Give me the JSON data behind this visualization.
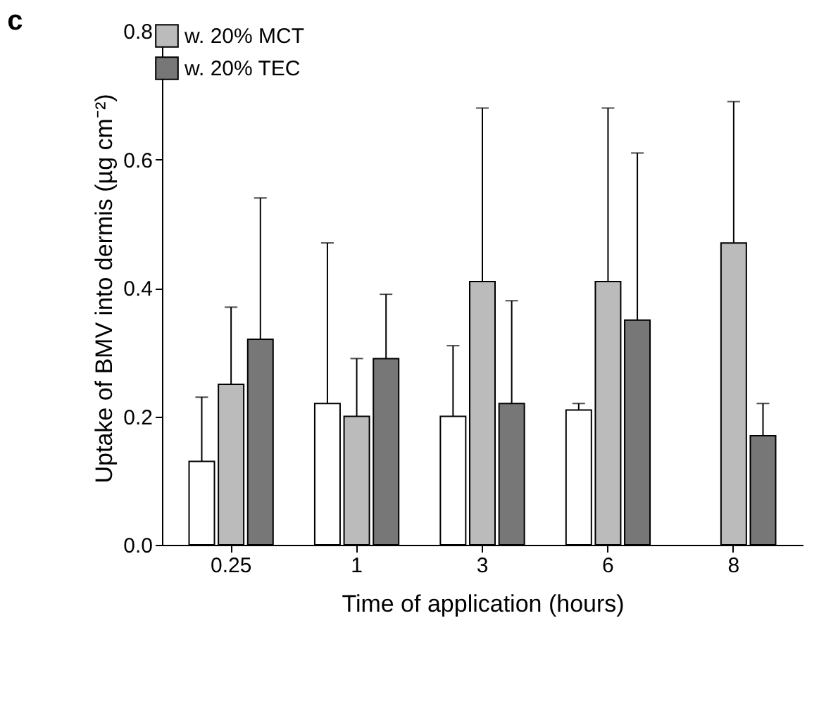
{
  "chart_data": {
    "type": "bar",
    "ylabel": "Uptake of BMV into dermis (µg cm⁻²)",
    "xlabel": "Time of application (hours)",
    "annotations": [
      "c"
    ],
    "categories": [
      "0.25",
      "1",
      "3",
      "6",
      "8"
    ],
    "series": [
      {
        "color": "#ffffff",
        "values": [
          0.13,
          0.22,
          0.2,
          0.21,
          null
        ],
        "errors": [
          [
            0.13,
            0.23
          ],
          [
            0.22,
            0.47
          ],
          [
            0.2,
            0.31
          ],
          [
            0.21,
            0.22
          ],
          null
        ]
      },
      {
        "name": "w. 20% MCT",
        "color": "#bbbbbb",
        "values": [
          0.25,
          0.2,
          0.41,
          0.41,
          0.47
        ],
        "errors": [
          [
            0.25,
            0.37
          ],
          [
            0.2,
            0.29
          ],
          [
            0.41,
            0.68
          ],
          [
            0.41,
            0.68
          ],
          [
            0.47,
            0.69
          ]
        ]
      },
      {
        "name": "w. 20% TEC",
        "color": "#777777",
        "values": [
          0.32,
          0.29,
          0.22,
          0.35,
          0.17
        ],
        "errors": [
          [
            0.32,
            0.54
          ],
          [
            0.29,
            0.39
          ],
          [
            0.22,
            0.38
          ],
          [
            0.35,
            0.61
          ],
          [
            0.17,
            0.22
          ]
        ]
      }
    ],
    "ylim": [
      0,
      0.8
    ],
    "yticks": [
      {
        "value": 0,
        "label": "0.0"
      },
      {
        "value": 0.2,
        "label": "0.2"
      },
      {
        "value": 0.4,
        "label": "0.4"
      },
      {
        "value": 0.6,
        "label": "0.6"
      },
      {
        "value": 0.8,
        "label": "0.8"
      }
    ],
    "grid": false,
    "legend": "top left"
  }
}
